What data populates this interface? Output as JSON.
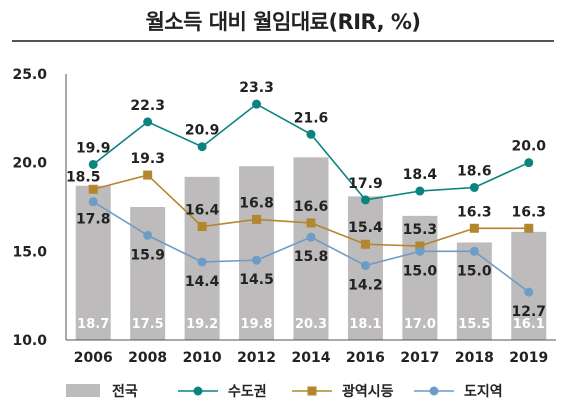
{
  "chart_data": {
    "type": "bar",
    "title": "월소득 대비 월임대료(RIR, %)",
    "categories": [
      "2006",
      "2008",
      "2010",
      "2012",
      "2014",
      "2016",
      "2017",
      "2018",
      "2019"
    ],
    "ylim": [
      10,
      25
    ],
    "yticks": [
      "25.0",
      "20.0",
      "15.0",
      "10.0"
    ],
    "series": [
      {
        "name": "전국",
        "kind": "bar",
        "color": "#bdbbbb",
        "values": [
          18.7,
          17.5,
          19.2,
          19.8,
          20.3,
          18.1,
          17.0,
          15.5,
          16.1
        ]
      },
      {
        "name": "수도권",
        "kind": "line",
        "color": "#0b8480",
        "marker": "circle",
        "values": [
          19.9,
          22.3,
          20.9,
          23.3,
          21.6,
          17.9,
          18.4,
          18.6,
          20.0
        ]
      },
      {
        "name": "광역시등",
        "kind": "line",
        "color": "#b4862e",
        "marker": "square",
        "values": [
          18.5,
          19.3,
          16.4,
          16.8,
          16.6,
          15.4,
          15.3,
          16.3,
          16.3
        ]
      },
      {
        "name": "도지역",
        "kind": "line",
        "color": "#6f9cc6",
        "marker": "circle",
        "values": [
          17.8,
          15.9,
          14.4,
          14.5,
          15.8,
          14.2,
          15.0,
          15.0,
          12.7
        ]
      }
    ],
    "legend_position": "bottom",
    "grid": false
  }
}
